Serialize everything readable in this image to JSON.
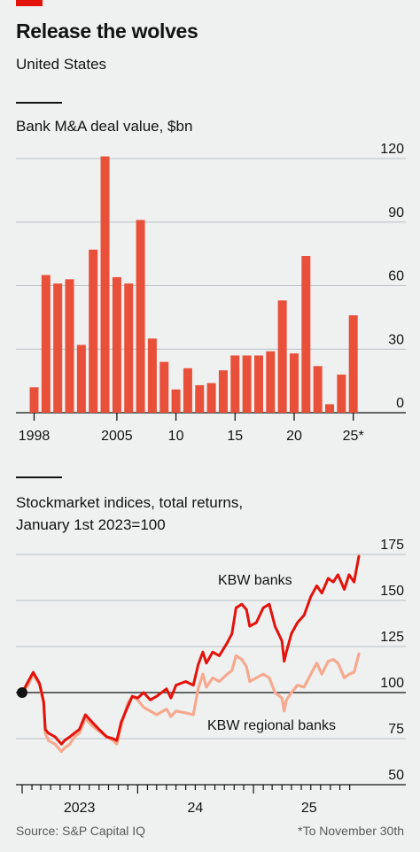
{
  "header": {
    "title": "Release the wolves",
    "subtitle": "United States"
  },
  "chart1": {
    "title": "Bank M&A deal value, $bn"
  },
  "chart2": {
    "title_line1": "Stockmarket indices, total returns,",
    "title_line2": "January 1st 2023=100"
  },
  "footer": {
    "source": "Source: S&P Capital IQ",
    "note": "*To November 30th"
  },
  "colors": {
    "bar": "#e8503a",
    "kbw_banks": "#e3120b",
    "kbw_regional": "#f6a98e",
    "background": "#eff1f1",
    "gridline": "#b7c0c5"
  },
  "chart_data": [
    {
      "type": "bar",
      "title": "Bank M&A deal value, $bn",
      "categories": [
        "1998",
        "1999",
        "2000",
        "2001",
        "2002",
        "2003",
        "2004",
        "2005",
        "2006",
        "2007",
        "2008",
        "2009",
        "2010",
        "2011",
        "2012",
        "2013",
        "2014",
        "2015",
        "2016",
        "2017",
        "2018",
        "2019",
        "2020",
        "2021",
        "2022",
        "2023",
        "2024",
        "2025*"
      ],
      "values": [
        12,
        65,
        61,
        63,
        32,
        77,
        121,
        64,
        61,
        91,
        35,
        24,
        11,
        21,
        13,
        14,
        20,
        27,
        27,
        27,
        29,
        53,
        28,
        74,
        22,
        4,
        18,
        46
      ],
      "xtick_labels": [
        "1998",
        "2005",
        "10",
        "15",
        "20",
        "25*"
      ],
      "ytick_labels": [
        "0",
        "30",
        "60",
        "90",
        "120"
      ],
      "ylim": [
        0,
        125
      ],
      "grid": true
    },
    {
      "type": "line",
      "title": "Stockmarket indices, total returns, January 1st 2023=100",
      "xtick_labels": [
        "2023",
        "24",
        "25"
      ],
      "ytick_labels": [
        "50",
        "75",
        "100",
        "125",
        "150",
        "175"
      ],
      "ylim": [
        50,
        175
      ],
      "x_start": "2023-01-01",
      "x_end": "2025-11-30",
      "series": [
        {
          "name": "KBW banks",
          "points": [
            [
              "2023-01-01",
              100
            ],
            [
              "2023-01-20",
              106
            ],
            [
              "2023-02-05",
              111
            ],
            [
              "2023-02-25",
              105
            ],
            [
              "2023-03-10",
              95
            ],
            [
              "2023-03-15",
              80
            ],
            [
              "2023-03-25",
              78
            ],
            [
              "2023-04-15",
              76
            ],
            [
              "2023-05-05",
              72
            ],
            [
              "2023-05-15",
              74
            ],
            [
              "2023-06-01",
              76
            ],
            [
              "2023-06-15",
              78
            ],
            [
              "2023-07-01",
              80
            ],
            [
              "2023-07-20",
              88
            ],
            [
              "2023-08-10",
              84
            ],
            [
              "2023-09-01",
              80
            ],
            [
              "2023-09-25",
              76
            ],
            [
              "2023-10-15",
              75
            ],
            [
              "2023-10-27",
              74
            ],
            [
              "2023-11-10",
              84
            ],
            [
              "2023-11-30",
              92
            ],
            [
              "2023-12-15",
              98
            ],
            [
              "2024-01-01",
              97
            ],
            [
              "2024-01-20",
              100
            ],
            [
              "2024-02-10",
              96
            ],
            [
              "2024-03-01",
              98
            ],
            [
              "2024-04-01",
              102
            ],
            [
              "2024-04-15",
              97
            ],
            [
              "2024-05-01",
              104
            ],
            [
              "2024-06-01",
              106
            ],
            [
              "2024-06-25",
              104
            ],
            [
              "2024-07-10",
              115
            ],
            [
              "2024-07-25",
              122
            ],
            [
              "2024-08-05",
              116
            ],
            [
              "2024-08-25",
              122
            ],
            [
              "2024-09-15",
              120
            ],
            [
              "2024-10-10",
              127
            ],
            [
              "2024-10-25",
              132
            ],
            [
              "2024-11-07",
              146
            ],
            [
              "2024-11-25",
              148
            ],
            [
              "2024-12-10",
              145
            ],
            [
              "2024-12-20",
              136
            ],
            [
              "2025-01-10",
              138
            ],
            [
              "2025-02-01",
              146
            ],
            [
              "2025-02-20",
              148
            ],
            [
              "2025-03-10",
              136
            ],
            [
              "2025-04-01",
              128
            ],
            [
              "2025-04-08",
              117
            ],
            [
              "2025-04-15",
              122
            ],
            [
              "2025-05-01",
              132
            ],
            [
              "2025-05-20",
              138
            ],
            [
              "2025-06-10",
              142
            ],
            [
              "2025-07-01",
              152
            ],
            [
              "2025-07-20",
              158
            ],
            [
              "2025-08-05",
              154
            ],
            [
              "2025-08-25",
              162
            ],
            [
              "2025-09-10",
              160
            ],
            [
              "2025-09-25",
              164
            ],
            [
              "2025-10-15",
              156
            ],
            [
              "2025-10-30",
              164
            ],
            [
              "2025-11-15",
              160
            ],
            [
              "2025-11-30",
              174
            ]
          ]
        },
        {
          "name": "KBW regional banks",
          "points": [
            [
              "2023-01-01",
              100
            ],
            [
              "2023-01-20",
              104
            ],
            [
              "2023-02-05",
              110
            ],
            [
              "2023-02-25",
              104
            ],
            [
              "2023-03-10",
              94
            ],
            [
              "2023-03-15",
              78
            ],
            [
              "2023-03-25",
              74
            ],
            [
              "2023-04-15",
              72
            ],
            [
              "2023-05-05",
              68
            ],
            [
              "2023-05-15",
              70
            ],
            [
              "2023-06-01",
              72
            ],
            [
              "2023-06-15",
              76
            ],
            [
              "2023-07-01",
              78
            ],
            [
              "2023-07-20",
              86
            ],
            [
              "2023-08-10",
              82
            ],
            [
              "2023-09-01",
              79
            ],
            [
              "2023-09-25",
              76
            ],
            [
              "2023-10-15",
              74
            ],
            [
              "2023-10-27",
              72
            ],
            [
              "2023-11-10",
              82
            ],
            [
              "2023-11-30",
              94
            ],
            [
              "2023-12-15",
              98
            ],
            [
              "2024-01-01",
              96
            ],
            [
              "2024-01-20",
              92
            ],
            [
              "2024-02-10",
              90
            ],
            [
              "2024-03-01",
              88
            ],
            [
              "2024-04-01",
              91
            ],
            [
              "2024-04-15",
              87
            ],
            [
              "2024-05-01",
              90
            ],
            [
              "2024-06-01",
              89
            ],
            [
              "2024-06-25",
              88
            ],
            [
              "2024-07-10",
              102
            ],
            [
              "2024-07-25",
              110
            ],
            [
              "2024-08-05",
              103
            ],
            [
              "2024-08-25",
              108
            ],
            [
              "2024-09-15",
              106
            ],
            [
              "2024-10-10",
              110
            ],
            [
              "2024-10-25",
              112
            ],
            [
              "2024-11-07",
              120
            ],
            [
              "2024-11-25",
              118
            ],
            [
              "2024-12-10",
              114
            ],
            [
              "2024-12-20",
              106
            ],
            [
              "2025-01-10",
              108
            ],
            [
              "2025-02-01",
              110
            ],
            [
              "2025-02-20",
              108
            ],
            [
              "2025-03-10",
              100
            ],
            [
              "2025-04-01",
              97
            ],
            [
              "2025-04-08",
              90
            ],
            [
              "2025-04-15",
              96
            ],
            [
              "2025-05-01",
              100
            ],
            [
              "2025-05-20",
              104
            ],
            [
              "2025-06-10",
              103
            ],
            [
              "2025-07-01",
              110
            ],
            [
              "2025-07-20",
              116
            ],
            [
              "2025-08-05",
              110
            ],
            [
              "2025-08-25",
              117
            ],
            [
              "2025-09-10",
              118
            ],
            [
              "2025-09-25",
              116
            ],
            [
              "2025-10-15",
              108
            ],
            [
              "2025-10-30",
              110
            ],
            [
              "2025-11-15",
              111
            ],
            [
              "2025-11-30",
              121
            ]
          ]
        }
      ],
      "annotations": [
        "KBW banks",
        "KBW regional banks"
      ],
      "reference_line": 100,
      "grid": true
    }
  ]
}
